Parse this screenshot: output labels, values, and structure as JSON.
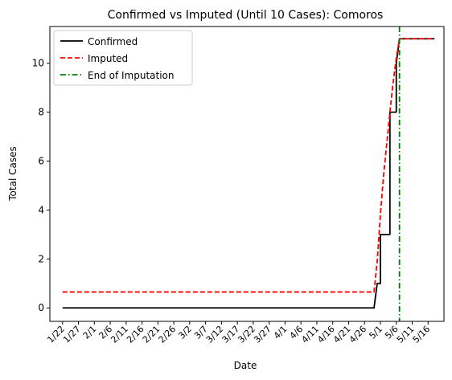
{
  "chart_data": {
    "type": "line",
    "title": "Confirmed vs Imputed (Until 10 Cases): Comoros",
    "xlabel": "Date",
    "ylabel": "Total Cases",
    "x_tick_labels": [
      "1/22",
      "1/27",
      "2/1",
      "2/6",
      "2/11",
      "2/16",
      "2/21",
      "2/26",
      "3/2",
      "3/7",
      "3/12",
      "3/17",
      "3/22",
      "3/27",
      "4/1",
      "4/6",
      "4/11",
      "4/16",
      "4/21",
      "4/26",
      "5/1",
      "5/6",
      "5/11",
      "5/16"
    ],
    "y_ticks": [
      0,
      2,
      4,
      6,
      8,
      10
    ],
    "xlim": [
      "1/18",
      "5/21"
    ],
    "ylim": [
      -0.55,
      11.5
    ],
    "grid": false,
    "legend_position": "top-left",
    "series": [
      {
        "name": "Confirmed",
        "color": "#000000",
        "style": "solid",
        "points": [
          [
            "1/22",
            0
          ],
          [
            "4/29",
            0
          ],
          [
            "4/30",
            1
          ],
          [
            "5/1",
            1
          ],
          [
            "5/1",
            3
          ],
          [
            "5/4",
            3
          ],
          [
            "5/4",
            8
          ],
          [
            "5/6",
            8
          ],
          [
            "5/6",
            10
          ],
          [
            "5/7",
            11
          ],
          [
            "5/18",
            11
          ]
        ]
      },
      {
        "name": "Imputed",
        "color": "#ff0000",
        "style": "dashed",
        "points": [
          [
            "1/22",
            0.65
          ],
          [
            "4/29",
            0.65
          ],
          [
            "4/30",
            1.9
          ],
          [
            "5/1",
            3.8
          ],
          [
            "5/2",
            5.4
          ],
          [
            "5/3",
            6.7
          ],
          [
            "5/4",
            8.0
          ],
          [
            "5/5",
            9.2
          ],
          [
            "5/6",
            10.2
          ],
          [
            "5/7",
            11
          ],
          [
            "5/18",
            11
          ]
        ]
      },
      {
        "name": "End of Imputation",
        "color": "#008000",
        "style": "dashdot",
        "vertical_line_at": "5/7"
      }
    ]
  }
}
